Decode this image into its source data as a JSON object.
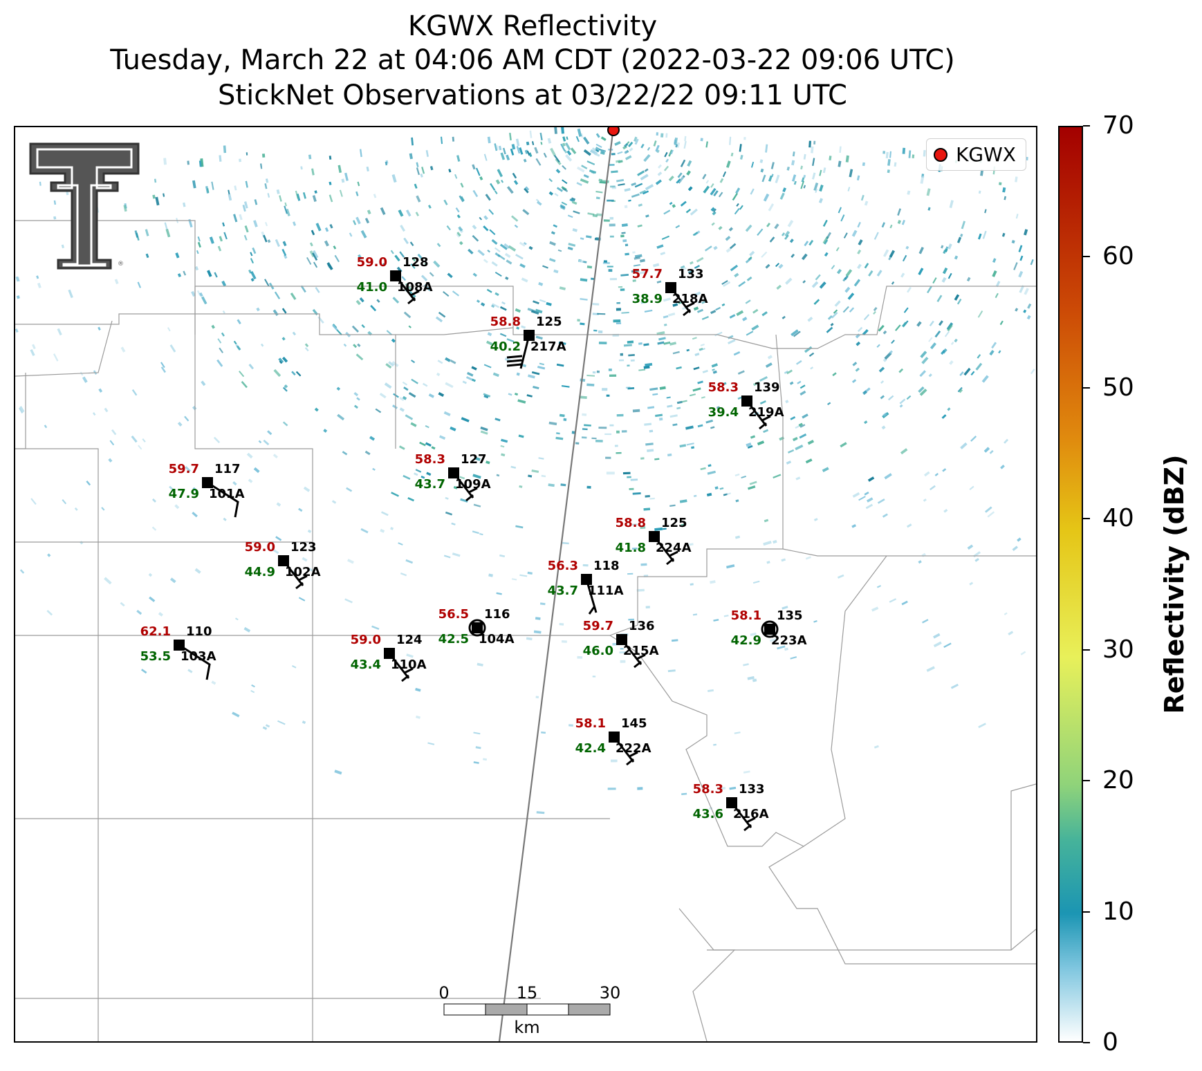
{
  "title": {
    "line1": "KGWX Reflectivity",
    "line2": "Tuesday, March 22 at 04:06 AM CDT (2022-03-22 09:06 UTC)",
    "line3": "StickNet Observations at 03/22/22 09:11 UTC"
  },
  "legend": {
    "label": "KGWX"
  },
  "colorbar": {
    "title": "Reflectivity (dBZ)",
    "ticks": [
      "0",
      "10",
      "20",
      "30",
      "40",
      "50",
      "60",
      "70"
    ],
    "range": [
      0,
      70
    ]
  },
  "scale_bar": {
    "labels": [
      "0",
      "15",
      "30"
    ],
    "unit": "km"
  },
  "colors": {
    "temperature": "#b00000",
    "dewpoint": "#006400",
    "radar_site": "#e8160f"
  },
  "stations": [
    {
      "id": "108A",
      "temperature": "59.0",
      "dewpoint": "41.0",
      "pressure": "128"
    },
    {
      "id": "218A",
      "temperature": "57.7",
      "dewpoint": "38.9",
      "pressure": "133"
    },
    {
      "id": "217A",
      "temperature": "58.8",
      "dewpoint": "40.2",
      "pressure": "125"
    },
    {
      "id": "219A",
      "temperature": "58.3",
      "dewpoint": "39.4",
      "pressure": "139"
    },
    {
      "id": "109A",
      "temperature": "58.3",
      "dewpoint": "43.7",
      "pressure": "127"
    },
    {
      "id": "101A",
      "temperature": "59.7",
      "dewpoint": "47.9",
      "pressure": "117"
    },
    {
      "id": "224A",
      "temperature": "58.8",
      "dewpoint": "41.8",
      "pressure": "125"
    },
    {
      "id": "102A",
      "temperature": "59.0",
      "dewpoint": "44.9",
      "pressure": "123"
    },
    {
      "id": "111A",
      "temperature": "56.3",
      "dewpoint": "43.7",
      "pressure": "118"
    },
    {
      "id": "104A",
      "temperature": "56.5",
      "dewpoint": "42.5",
      "pressure": "116"
    },
    {
      "id": "223A",
      "temperature": "58.1",
      "dewpoint": "42.9",
      "pressure": "135"
    },
    {
      "id": "215A",
      "temperature": "59.7",
      "dewpoint": "46.0",
      "pressure": "136"
    },
    {
      "id": "103A",
      "temperature": "62.1",
      "dewpoint": "53.5",
      "pressure": "110"
    },
    {
      "id": "110A",
      "temperature": "59.0",
      "dewpoint": "43.4",
      "pressure": "124"
    },
    {
      "id": "222A",
      "temperature": "58.1",
      "dewpoint": "42.4",
      "pressure": "145"
    },
    {
      "id": "216A",
      "temperature": "58.3",
      "dewpoint": "43.6",
      "pressure": "133"
    }
  ]
}
